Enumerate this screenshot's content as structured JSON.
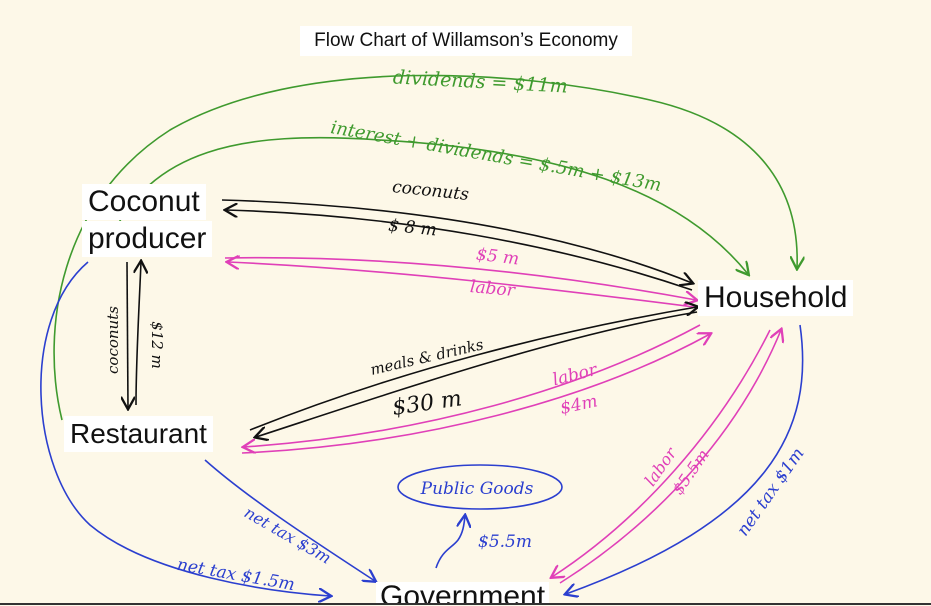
{
  "title": "Flow Chart of Willamson’s Economy",
  "nodes": {
    "coconut_producer_line1": "Coconut",
    "coconut_producer_line2": "producer",
    "household": "Household",
    "restaurant": "Restaurant",
    "government": "Government",
    "public_goods": "Public Goods"
  },
  "flows": {
    "dividends": "dividends = $11m",
    "interest_dividends": "interest + dividends = $.5m + $13m",
    "coconuts_top": "coconuts",
    "coconuts_payment": "$ 8 m",
    "wage_top": "$5 m",
    "labor_top": "labor",
    "coconuts_side": "coconuts",
    "coconuts_side_payment": "$12 m",
    "meals_drinks": "meals & drinks",
    "meals_payment": "$30 m",
    "labor_restaurant": "labor",
    "wage_restaurant": "$4m",
    "labor_government": "labor",
    "wage_government": "$5.5m",
    "public_goods_payment": "$5.5m",
    "net_tax_restaurant": "net tax $3m",
    "net_tax_coconut": "net tax $1.5m",
    "net_tax_household": "net tax $1m"
  },
  "colors": {
    "green": "#3f9a2e",
    "black": "#111111",
    "pink": "#e040b8",
    "blue": "#2b3fcf",
    "background": "#fdf8e8"
  }
}
